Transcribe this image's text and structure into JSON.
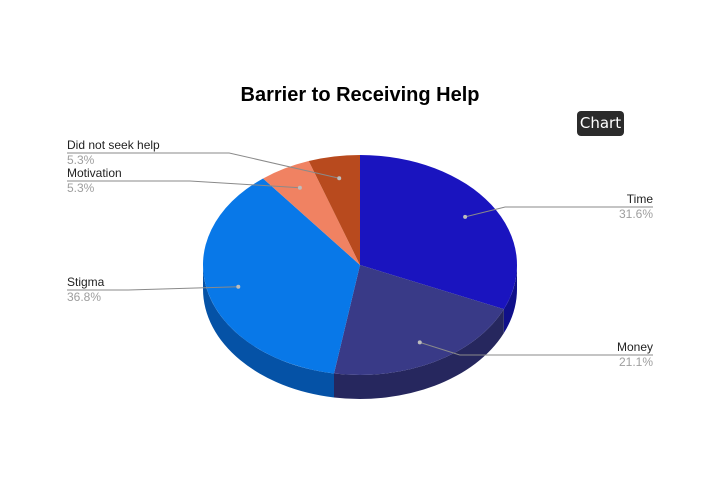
{
  "badge": {
    "label": "Chart"
  },
  "chart_data": {
    "type": "pie",
    "title": "Barrier to Receiving Help",
    "three_d": true,
    "legend": "none",
    "labels_position": "outside with leader lines",
    "slices": [
      {
        "label": "Time",
        "value": 31.6,
        "percent_label": "31.6%",
        "color": "#1a14bf",
        "side_color": "#10108a"
      },
      {
        "label": "Money",
        "value": 21.1,
        "percent_label": "21.1%",
        "color": "#393a87",
        "side_color": "#26275e"
      },
      {
        "label": "Stigma",
        "value": 36.8,
        "percent_label": "36.8%",
        "color": "#0878e8",
        "side_color": "#0552a6"
      },
      {
        "label": "Motivation",
        "value": 5.3,
        "percent_label": "5.3%",
        "color": "#f08262",
        "side_color": "#b85c42"
      },
      {
        "label": "Did not seek help",
        "value": 5.3,
        "percent_label": "5.3%",
        "color": "#b84a1e",
        "side_color": "#863512"
      }
    ]
  }
}
